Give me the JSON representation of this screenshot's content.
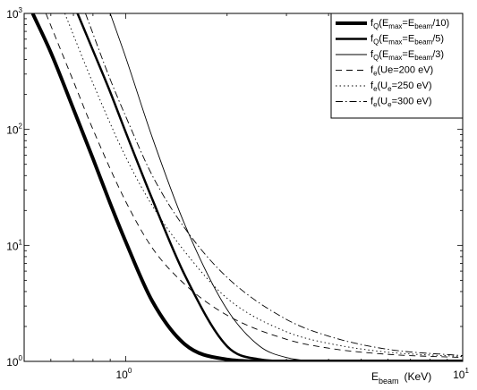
{
  "chart_data": {
    "type": "line",
    "xscale": "log",
    "yscale": "log",
    "xlim": [
      0.5,
      10
    ],
    "ylim": [
      1,
      1000
    ],
    "grid": false,
    "legend_placement": "top-right",
    "xlabel": {
      "main": "E",
      "sub": "beam",
      "unit": "(KeV)"
    },
    "ylabel": "",
    "title": "",
    "xticks": [
      {
        "value": 1,
        "base": "10",
        "exp": "0"
      },
      {
        "value": 10,
        "base": "10",
        "exp": "1"
      }
    ],
    "yticks": [
      {
        "value": 1,
        "base": "10",
        "exp": "0"
      },
      {
        "value": 10,
        "base": "10",
        "exp": "1"
      },
      {
        "value": 100,
        "base": "10",
        "exp": "2"
      },
      {
        "value": 1000,
        "base": "10",
        "exp": "3"
      }
    ],
    "series": [
      {
        "name": "fQ(Emax=Ebeam/10)",
        "label_parts": [
          [
            "f",
            ""
          ],
          [
            "Q",
            "sub"
          ],
          [
            "(E",
            ""
          ],
          [
            "max",
            "sub"
          ],
          [
            "=E",
            ""
          ],
          [
            "beam",
            "sub"
          ],
          [
            "/10)",
            ""
          ]
        ],
        "style": {
          "width": 4.0,
          "dash": ""
        },
        "x": [
          0.53,
          0.6,
          0.7,
          0.8,
          0.9,
          1.0,
          1.2,
          1.5,
          2.0,
          2.5,
          3.0,
          4.0,
          6.0,
          10.0
        ],
        "y": [
          1000,
          460,
          150,
          56,
          23,
          10.8,
          3.3,
          1.4,
          1.04,
          1.003,
          1.0,
          1.0,
          1.0,
          1.0
        ]
      },
      {
        "name": "fQ(Emax=Ebeam/5)",
        "label_parts": [
          [
            "f",
            ""
          ],
          [
            "Q",
            "sub"
          ],
          [
            "(E",
            ""
          ],
          [
            "max",
            "sub"
          ],
          [
            "=E",
            ""
          ],
          [
            "beam",
            "sub"
          ],
          [
            "/5)",
            ""
          ]
        ],
        "style": {
          "width": 2.5,
          "dash": ""
        },
        "x": [
          0.72,
          0.8,
          0.9,
          1.0,
          1.2,
          1.5,
          2.0,
          2.5,
          3.0,
          4.0,
          6.0,
          10.0
        ],
        "y": [
          1000,
          480,
          210,
          95,
          25,
          5.5,
          1.35,
          1.04,
          1.005,
          1.0,
          1.0,
          1.0
        ]
      },
      {
        "name": "fQ(Emax=Ebeam/3)",
        "label_parts": [
          [
            "f",
            ""
          ],
          [
            "Q",
            "sub"
          ],
          [
            "(E",
            ""
          ],
          [
            "max",
            "sub"
          ],
          [
            "=E",
            ""
          ],
          [
            "beam",
            "sub"
          ],
          [
            "/3)",
            ""
          ]
        ],
        "style": {
          "width": 0.9,
          "dash": ""
        },
        "x": [
          0.9,
          1.0,
          1.2,
          1.5,
          2.0,
          2.5,
          3.0,
          4.0,
          5.0,
          6.0,
          10.0
        ],
        "y": [
          1000,
          420,
          85,
          15,
          2.8,
          1.35,
          1.08,
          1.005,
          1.0,
          1.0,
          1.0
        ]
      },
      {
        "name": "fe(Ue=200 eV)",
        "label_parts": [
          [
            "f",
            ""
          ],
          [
            "e",
            "sub"
          ],
          [
            "(Ue=200 eV)",
            ""
          ]
        ],
        "style": {
          "width": 0.9,
          "dash": "7,5"
        },
        "x": [
          0.58,
          0.7,
          0.8,
          1.0,
          1.2,
          1.5,
          2.0,
          3.0,
          4.0,
          6.0,
          10.0
        ],
        "y": [
          1000,
          260,
          100,
          24,
          9.5,
          4.6,
          2.5,
          1.55,
          1.3,
          1.15,
          1.08
        ]
      },
      {
        "name": "fe(Ue=250 eV)",
        "label_parts": [
          [
            "f",
            ""
          ],
          [
            "e",
            "sub"
          ],
          [
            "(U",
            ""
          ],
          [
            "e",
            "sub"
          ],
          [
            "=250 eV)",
            ""
          ]
        ],
        "style": {
          "width": 0.9,
          "dash": "1.5,3"
        },
        "x": [
          0.66,
          0.8,
          1.0,
          1.2,
          1.5,
          2.0,
          3.0,
          4.0,
          6.0,
          10.0
        ],
        "y": [
          1000,
          250,
          58,
          22,
          8.8,
          3.5,
          1.8,
          1.43,
          1.2,
          1.1
        ]
      },
      {
        "name": "fe(Ue=300 eV)",
        "label_parts": [
          [
            "f",
            ""
          ],
          [
            "e",
            "sub"
          ],
          [
            "(U",
            ""
          ],
          [
            "e",
            "sub"
          ],
          [
            "=300 eV)",
            ""
          ]
        ],
        "style": {
          "width": 0.9,
          "dash": "8,3,1.5,3"
        },
        "x": [
          0.76,
          0.9,
          1.0,
          1.2,
          1.5,
          2.0,
          3.0,
          4.0,
          6.0,
          10.0
        ],
        "y": [
          1000,
          270,
          130,
          40,
          14,
          5.3,
          2.3,
          1.65,
          1.27,
          1.12
        ]
      }
    ]
  }
}
